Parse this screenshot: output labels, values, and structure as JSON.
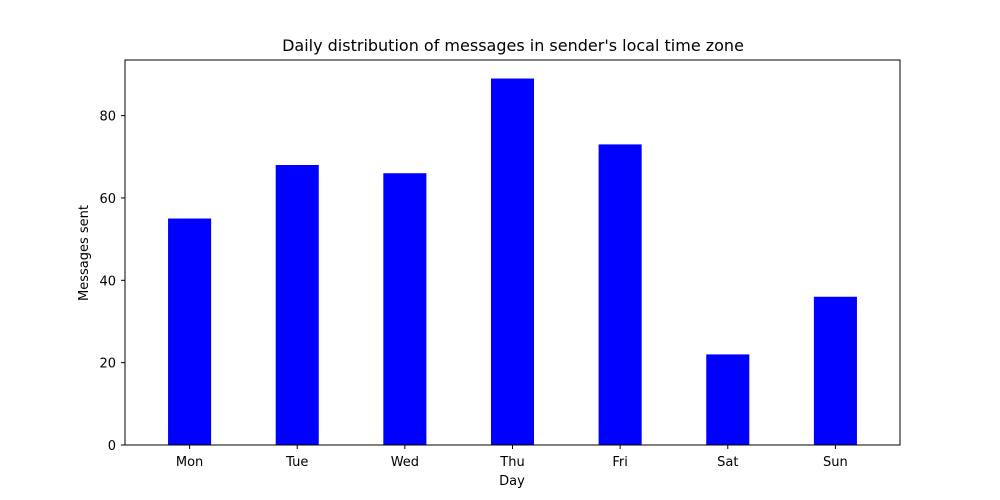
{
  "chart_data": {
    "type": "bar",
    "title": "Daily distribution of messages in sender's local time zone",
    "xlabel": "Day",
    "ylabel": "Messages sent",
    "categories": [
      "Mon",
      "Tue",
      "Wed",
      "Thu",
      "Fri",
      "Sat",
      "Sun"
    ],
    "values": [
      55,
      68,
      66,
      89,
      73,
      22,
      36
    ],
    "ylim": [
      0,
      93.5
    ],
    "yticks": [
      0,
      20,
      40,
      60,
      80
    ],
    "bar_color": "#0000ff",
    "grid": false,
    "legend": "none"
  }
}
